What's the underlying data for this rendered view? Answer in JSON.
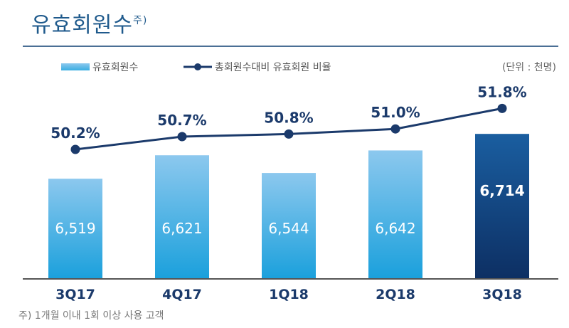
{
  "title": "유효회원수",
  "title_note": "주)",
  "unit": "(단위 : 천명)",
  "footnote": "주) 1개월 이내 1회 이상 사용 고객",
  "chart_data": {
    "type": "bar",
    "categories": [
      "3Q17",
      "4Q17",
      "1Q18",
      "2Q18",
      "3Q18"
    ],
    "series": [
      {
        "name": "유효회원수",
        "type": "bar",
        "values": [
          6519,
          6621,
          6544,
          6642,
          6714
        ],
        "labels": [
          "6,519",
          "6,621",
          "6,544",
          "6,642",
          "6,714"
        ]
      },
      {
        "name": "총회원수대비 유효회원 비율",
        "type": "line",
        "values": [
          50.2,
          50.7,
          50.8,
          51.0,
          51.8
        ],
        "labels": [
          "50.2%",
          "50.7%",
          "50.8%",
          "51.0%",
          "51.8%"
        ]
      }
    ],
    "colors": {
      "bar": "#1aa0dc",
      "bar_highlight": "#0d2f63",
      "line": "#1b3a6b"
    }
  }
}
